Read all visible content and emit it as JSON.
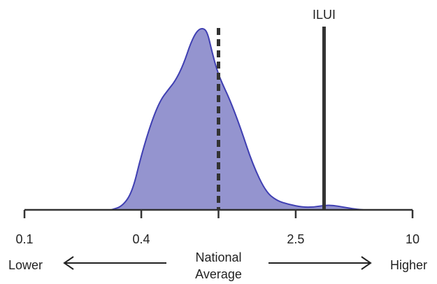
{
  "chart_data": {
    "type": "area",
    "title": "",
    "xlabel": "",
    "ylabel": "",
    "x_scale": "log",
    "xlim": [
      0.1,
      10
    ],
    "ticks": [
      {
        "value": 0.1,
        "label": "0.1"
      },
      {
        "value": 0.4,
        "label": "0.4"
      },
      {
        "value": 1,
        "label": ""
      },
      {
        "value": 2.5,
        "label": "2.5"
      },
      {
        "value": 10,
        "label": "10"
      }
    ],
    "density": {
      "x": [
        0.28,
        0.32,
        0.36,
        0.4,
        0.45,
        0.5,
        0.55,
        0.6,
        0.66,
        0.72,
        0.78,
        0.84,
        0.88,
        0.92,
        0.98,
        1.05,
        1.15,
        1.3,
        1.5,
        1.75,
        2.0,
        2.3,
        2.7,
        3.1,
        3.5,
        3.9,
        4.4,
        5.0,
        5.6
      ],
      "y": [
        0.0,
        0.02,
        0.1,
        0.3,
        0.48,
        0.6,
        0.66,
        0.71,
        0.8,
        0.92,
        0.99,
        1.0,
        0.97,
        0.88,
        0.77,
        0.69,
        0.6,
        0.45,
        0.25,
        0.1,
        0.05,
        0.03,
        0.015,
        0.015,
        0.025,
        0.025,
        0.015,
        0.005,
        0.0
      ],
      "fill": "#9494cf",
      "stroke": "#3f3fb2"
    },
    "reference_lines": [
      {
        "name": "national-average",
        "x": 1.0,
        "style": "dashed",
        "label": ""
      },
      {
        "name": "ilui",
        "x": 3.5,
        "style": "solid",
        "label": "ILUI"
      }
    ],
    "annotations": {
      "lower": "Lower",
      "higher": "Higher",
      "center_line1": "National",
      "center_line2": "Average"
    },
    "axis_color": "#333333",
    "line_color": "#333333"
  }
}
